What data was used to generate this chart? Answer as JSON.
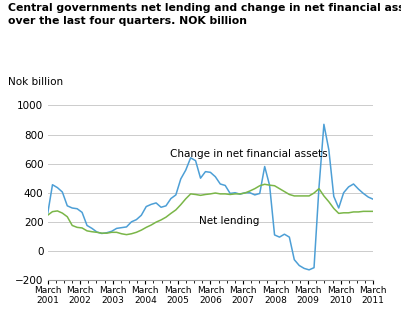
{
  "title": "Central governments net lending and change in net financial assets\nover the last four quarters. NOK billion",
  "ylabel": "Nok billion",
  "ylim": [
    -200,
    1000
  ],
  "yticks": [
    -200,
    0,
    200,
    400,
    600,
    800,
    1000
  ],
  "bg_color": "#ffffff",
  "grid_color": "#cccccc",
  "line_blue_color": "#4d9fd6",
  "line_green_color": "#7ab648",
  "label_blue": "Change in net financial assets",
  "label_green": "Net lending",
  "x_labels": [
    "March\n2001",
    "March\n2002",
    "March\n2003",
    "March\n2004",
    "March\n2005",
    "March\n2006",
    "March\n2007",
    "March\n2008",
    "March\n2009",
    "March\n2010",
    "March\n2011"
  ],
  "blue_data": [
    250,
    455,
    435,
    405,
    310,
    295,
    290,
    265,
    175,
    155,
    130,
    120,
    125,
    135,
    155,
    160,
    165,
    200,
    215,
    245,
    305,
    320,
    330,
    300,
    310,
    360,
    385,
    495,
    555,
    640,
    620,
    500,
    545,
    540,
    510,
    460,
    450,
    395,
    400,
    390,
    400,
    400,
    385,
    395,
    580,
    450,
    110,
    95,
    115,
    95,
    -60,
    -100,
    -120,
    -130,
    -115,
    435,
    870,
    695,
    375,
    295,
    400,
    440,
    460,
    425,
    395,
    370,
    355
  ],
  "green_data": [
    245,
    270,
    275,
    260,
    235,
    175,
    162,
    158,
    138,
    132,
    128,
    122,
    122,
    128,
    128,
    118,
    112,
    118,
    128,
    143,
    162,
    178,
    198,
    213,
    232,
    258,
    282,
    318,
    358,
    392,
    388,
    382,
    388,
    392,
    398,
    392,
    392,
    388,
    392,
    392,
    398,
    412,
    428,
    448,
    458,
    452,
    448,
    428,
    408,
    388,
    378,
    378,
    378,
    378,
    398,
    428,
    378,
    338,
    292,
    258,
    262,
    262,
    268,
    268,
    272,
    272,
    272
  ],
  "n_points": 67
}
